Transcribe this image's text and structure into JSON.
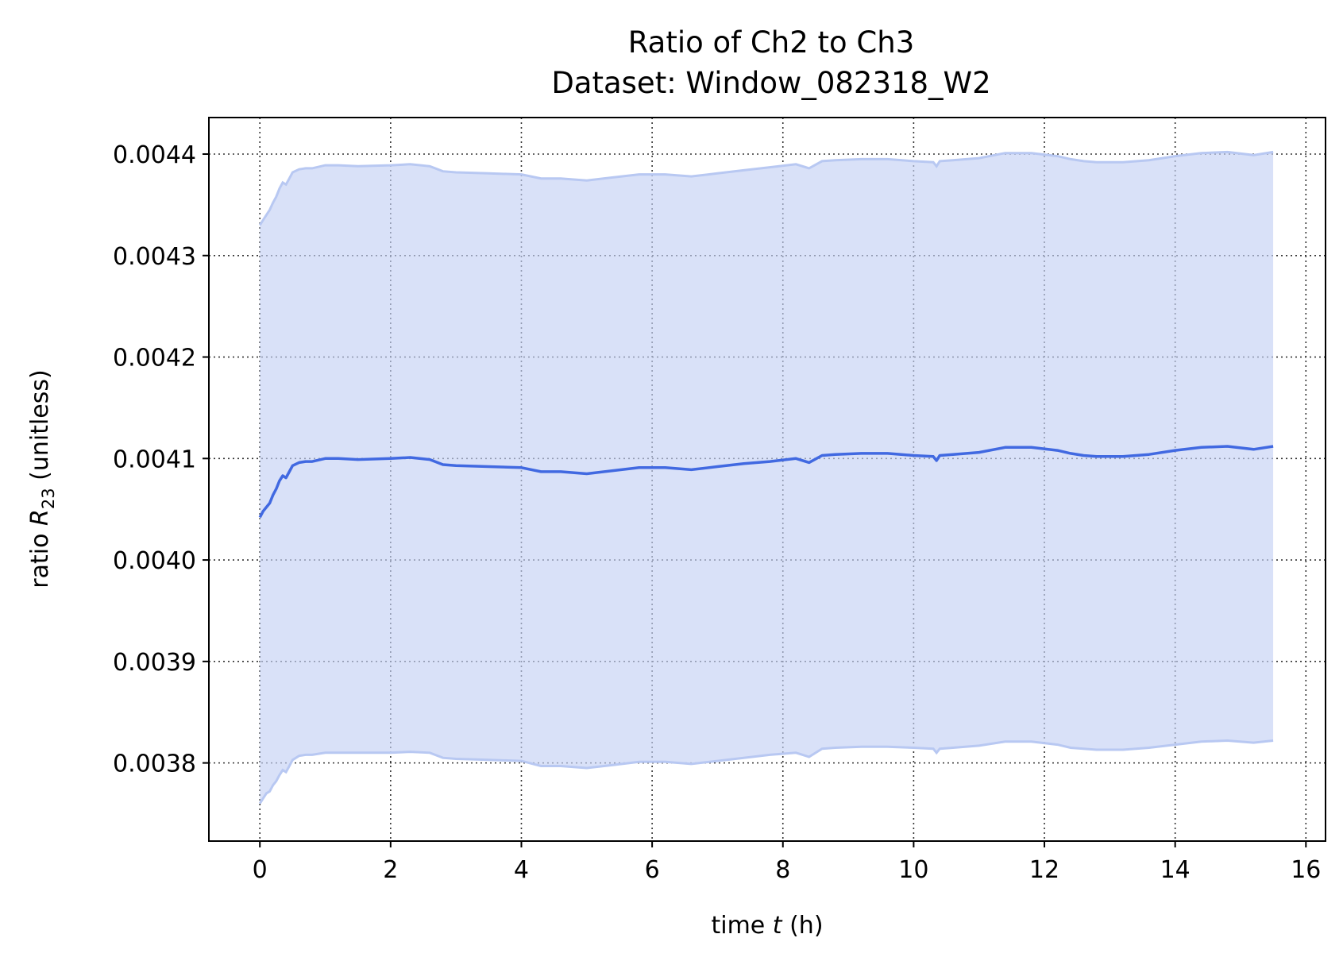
{
  "chart_data": {
    "type": "line",
    "title": "Ratio of Ch2 to Ch3",
    "subtitle": "Dataset: Window_082318_W2",
    "xlabel": {
      "prefix": "time ",
      "var": "t",
      "suffix": " (h)"
    },
    "ylabel": {
      "prefix": "ratio ",
      "var": "R",
      "sub": "23",
      "suffix": " (unitless)"
    },
    "xlim": [
      -0.78,
      16.3
    ],
    "ylim": [
      0.003723,
      0.004436
    ],
    "xticks": [
      0,
      2,
      4,
      6,
      8,
      10,
      12,
      14,
      16
    ],
    "xtick_labels": [
      "0",
      "2",
      "4",
      "6",
      "8",
      "10",
      "12",
      "14",
      "16"
    ],
    "yticks": [
      0.0038,
      0.0039,
      0.004,
      0.0041,
      0.0042,
      0.0043,
      0.0044
    ],
    "ytick_labels": [
      "0.0038",
      "0.0039",
      "0.0040",
      "0.0041",
      "0.0042",
      "0.0043",
      "0.0044"
    ],
    "grid": true,
    "line_color": "#4169e1",
    "band_color": "#c5d1f5",
    "band_edge_color": "#b8c8f2",
    "series": [
      {
        "x": [
          0.0,
          0.05,
          0.1,
          0.15,
          0.2,
          0.25,
          0.3,
          0.35,
          0.4,
          0.45,
          0.5,
          0.6,
          0.7,
          0.8,
          1.0,
          1.2,
          1.5,
          2.0,
          2.3,
          2.6,
          2.8,
          3.0,
          3.5,
          4.0,
          4.3,
          4.6,
          5.0,
          5.4,
          5.8,
          6.2,
          6.6,
          7.0,
          7.4,
          7.8,
          8.2,
          8.4,
          8.6,
          8.8,
          9.2,
          9.6,
          10.0,
          10.3,
          10.35,
          10.4,
          10.6,
          11.0,
          11.4,
          11.8,
          12.2,
          12.4,
          12.6,
          12.8,
          13.2,
          13.6,
          14.0,
          14.4,
          14.8,
          15.2,
          15.5
        ],
        "y": [
          0.004042,
          0.004048,
          0.004052,
          0.004056,
          0.004064,
          0.00407,
          0.004078,
          0.004083,
          0.004081,
          0.004087,
          0.004093,
          0.004096,
          0.004097,
          0.004097,
          0.0041,
          0.0041,
          0.004099,
          0.0041,
          0.004101,
          0.004099,
          0.004094,
          0.004093,
          0.004092,
          0.004091,
          0.004087,
          0.004087,
          0.004085,
          0.004088,
          0.004091,
          0.004091,
          0.004089,
          0.004092,
          0.004095,
          0.004097,
          0.0041,
          0.004096,
          0.004103,
          0.004104,
          0.004105,
          0.004105,
          0.004103,
          0.004102,
          0.004098,
          0.004103,
          0.004104,
          0.004106,
          0.004111,
          0.004111,
          0.004108,
          0.004105,
          0.004103,
          0.004102,
          0.004102,
          0.004104,
          0.004108,
          0.004111,
          0.004112,
          0.004109,
          0.004112
        ],
        "lower": [
          0.00376,
          0.003765,
          0.00377,
          0.003772,
          0.003778,
          0.003782,
          0.003788,
          0.003793,
          0.003791,
          0.003797,
          0.003803,
          0.003807,
          0.003808,
          0.003808,
          0.00381,
          0.00381,
          0.00381,
          0.00381,
          0.003811,
          0.00381,
          0.003805,
          0.003804,
          0.003803,
          0.003802,
          0.003797,
          0.003797,
          0.003795,
          0.003798,
          0.003801,
          0.003801,
          0.003799,
          0.003802,
          0.003805,
          0.003808,
          0.00381,
          0.003806,
          0.003814,
          0.003815,
          0.003816,
          0.003816,
          0.003815,
          0.003814,
          0.00381,
          0.003814,
          0.003815,
          0.003817,
          0.003821,
          0.003821,
          0.003818,
          0.003815,
          0.003814,
          0.003813,
          0.003813,
          0.003815,
          0.003818,
          0.003821,
          0.003822,
          0.00382,
          0.003822
        ],
        "upper": [
          0.00433,
          0.004335,
          0.00434,
          0.004345,
          0.004352,
          0.004358,
          0.004366,
          0.004372,
          0.00437,
          0.004376,
          0.004382,
          0.004385,
          0.004386,
          0.004386,
          0.004389,
          0.004389,
          0.004388,
          0.004389,
          0.00439,
          0.004388,
          0.004383,
          0.004382,
          0.004381,
          0.00438,
          0.004376,
          0.004376,
          0.004374,
          0.004377,
          0.00438,
          0.00438,
          0.004378,
          0.004381,
          0.004384,
          0.004387,
          0.00439,
          0.004386,
          0.004393,
          0.004394,
          0.004395,
          0.004395,
          0.004393,
          0.004392,
          0.004388,
          0.004393,
          0.004394,
          0.004396,
          0.004401,
          0.004401,
          0.004398,
          0.004395,
          0.004393,
          0.004392,
          0.004392,
          0.004394,
          0.004398,
          0.004401,
          0.004402,
          0.004399,
          0.004402
        ]
      }
    ]
  }
}
